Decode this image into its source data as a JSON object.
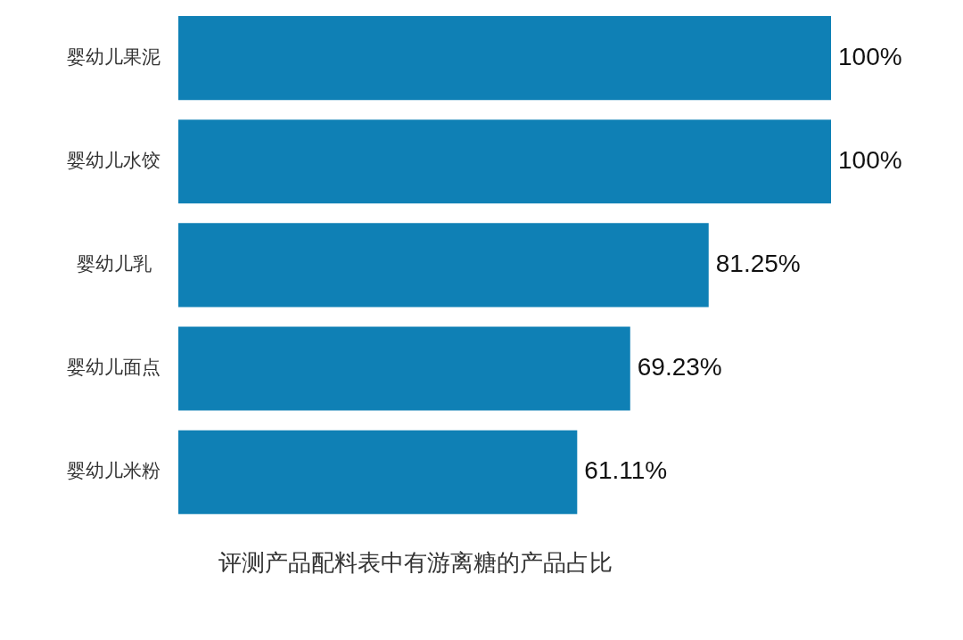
{
  "chart_data": {
    "type": "bar",
    "orientation": "horizontal",
    "title": "评测产品配料表中有游离糖的产品占比",
    "categories": [
      "婴幼儿果泥",
      "婴幼儿水饺",
      "婴幼儿乳",
      "婴幼儿面点",
      "婴幼儿米粉"
    ],
    "values": [
      100,
      100,
      81.25,
      69.23,
      61.11
    ],
    "color": "#0f80b5",
    "value_labels": [
      "100%",
      "100%",
      "81.25%",
      "69.23%",
      "61.11%"
    ],
    "xlim": [
      0,
      100
    ],
    "tick_labels": "y"
  }
}
